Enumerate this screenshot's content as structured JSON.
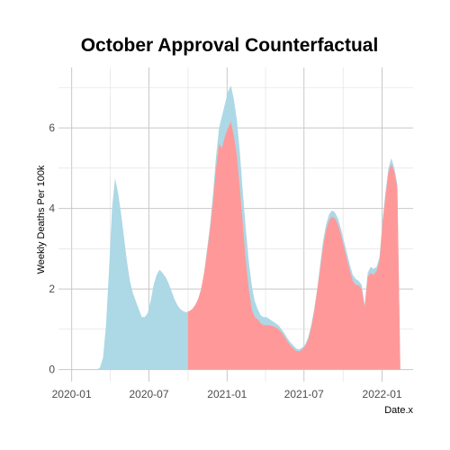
{
  "chart_data": {
    "type": "area",
    "title": "October Approval Counterfactual",
    "xlabel": "Date.x",
    "ylabel": "Weekly Deaths Per 100k",
    "xlim": [
      "2019-12-01",
      "2022-03-15"
    ],
    "ylim": [
      -0.3,
      7.5
    ],
    "x_ticks": [
      "2020-01-01",
      "2020-07-01",
      "2021-01-01",
      "2021-07-01",
      "2022-01-01"
    ],
    "x_tick_labels": [
      "2020-01",
      "2020-07",
      "2021-01",
      "2021-07",
      "2022-01"
    ],
    "y_ticks": [
      0,
      2,
      4,
      6
    ],
    "y_tick_labels": [
      "0",
      "2",
      "4",
      "6"
    ],
    "grid": true,
    "legend": "none",
    "series": [
      {
        "color": "#add8e6",
        "points": [
          [
            "2020-03-01",
            0.0
          ],
          [
            "2020-03-08",
            0.05
          ],
          [
            "2020-03-15",
            0.3
          ],
          [
            "2020-03-22",
            1.1
          ],
          [
            "2020-03-29",
            2.5
          ],
          [
            "2020-04-05",
            4.0
          ],
          [
            "2020-04-12",
            4.75
          ],
          [
            "2020-04-19",
            4.4
          ],
          [
            "2020-04-26",
            3.9
          ],
          [
            "2020-05-03",
            3.3
          ],
          [
            "2020-05-10",
            2.7
          ],
          [
            "2020-05-17",
            2.2
          ],
          [
            "2020-05-24",
            1.9
          ],
          [
            "2020-05-31",
            1.7
          ],
          [
            "2020-06-07",
            1.5
          ],
          [
            "2020-06-14",
            1.3
          ],
          [
            "2020-06-21",
            1.3
          ],
          [
            "2020-06-28",
            1.4
          ],
          [
            "2020-07-05",
            1.7
          ],
          [
            "2020-07-12",
            2.1
          ],
          [
            "2020-07-19",
            2.35
          ],
          [
            "2020-07-26",
            2.48
          ],
          [
            "2020-08-02",
            2.4
          ],
          [
            "2020-08-09",
            2.3
          ],
          [
            "2020-08-16",
            2.15
          ],
          [
            "2020-08-23",
            1.95
          ],
          [
            "2020-08-30",
            1.75
          ],
          [
            "2020-09-06",
            1.6
          ],
          [
            "2020-09-13",
            1.5
          ],
          [
            "2020-09-20",
            1.45
          ],
          [
            "2020-09-27",
            1.42
          ],
          [
            "2020-10-04",
            1.45
          ],
          [
            "2020-10-11",
            1.5
          ],
          [
            "2020-10-18",
            1.6
          ],
          [
            "2020-10-25",
            1.75
          ],
          [
            "2020-11-01",
            2.0
          ],
          [
            "2020-11-08",
            2.4
          ],
          [
            "2020-11-15",
            3.0
          ],
          [
            "2020-11-22",
            3.6
          ],
          [
            "2020-11-29",
            4.4
          ],
          [
            "2020-12-06",
            5.3
          ],
          [
            "2020-12-13",
            6.0
          ],
          [
            "2020-12-20",
            6.3
          ],
          [
            "2020-12-27",
            6.6
          ],
          [
            "2021-01-03",
            6.9
          ],
          [
            "2021-01-10",
            7.05
          ],
          [
            "2021-01-17",
            6.7
          ],
          [
            "2021-01-24",
            6.2
          ],
          [
            "2021-01-31",
            5.4
          ],
          [
            "2021-02-07",
            4.4
          ],
          [
            "2021-02-14",
            3.5
          ],
          [
            "2021-02-21",
            2.7
          ],
          [
            "2021-02-28",
            2.1
          ],
          [
            "2021-03-07",
            1.7
          ],
          [
            "2021-03-14",
            1.5
          ],
          [
            "2021-03-21",
            1.35
          ],
          [
            "2021-03-28",
            1.3
          ],
          [
            "2021-04-04",
            1.3
          ],
          [
            "2021-04-11",
            1.25
          ],
          [
            "2021-04-18",
            1.2
          ],
          [
            "2021-04-25",
            1.15
          ],
          [
            "2021-05-02",
            1.1
          ],
          [
            "2021-05-09",
            1.0
          ],
          [
            "2021-05-16",
            0.9
          ],
          [
            "2021-05-23",
            0.78
          ],
          [
            "2021-05-30",
            0.68
          ],
          [
            "2021-06-06",
            0.6
          ],
          [
            "2021-06-13",
            0.52
          ],
          [
            "2021-06-20",
            0.5
          ],
          [
            "2021-06-27",
            0.55
          ],
          [
            "2021-07-04",
            0.62
          ],
          [
            "2021-07-11",
            0.8
          ],
          [
            "2021-07-18",
            1.1
          ],
          [
            "2021-07-25",
            1.5
          ],
          [
            "2021-08-01",
            2.0
          ],
          [
            "2021-08-08",
            2.6
          ],
          [
            "2021-08-15",
            3.2
          ],
          [
            "2021-08-22",
            3.6
          ],
          [
            "2021-08-29",
            3.85
          ],
          [
            "2021-09-05",
            3.95
          ],
          [
            "2021-09-12",
            3.9
          ],
          [
            "2021-09-19",
            3.75
          ],
          [
            "2021-09-26",
            3.5
          ],
          [
            "2021-10-03",
            3.2
          ],
          [
            "2021-10-10",
            2.9
          ],
          [
            "2021-10-17",
            2.6
          ],
          [
            "2021-10-24",
            2.35
          ],
          [
            "2021-10-31",
            2.25
          ],
          [
            "2021-11-07",
            2.2
          ],
          [
            "2021-11-14",
            2.1
          ],
          [
            "2021-11-21",
            1.6
          ],
          [
            "2021-11-28",
            2.4
          ],
          [
            "2021-12-05",
            2.55
          ],
          [
            "2021-12-12",
            2.5
          ],
          [
            "2021-12-19",
            2.55
          ],
          [
            "2021-12-26",
            2.8
          ],
          [
            "2022-01-02",
            3.7
          ],
          [
            "2022-01-09",
            4.4
          ],
          [
            "2022-01-16",
            5.0
          ],
          [
            "2022-01-23",
            5.25
          ],
          [
            "2022-01-30",
            5.0
          ],
          [
            "2022-02-06",
            4.6
          ],
          [
            "2022-02-13",
            0.0
          ]
        ]
      },
      {
        "color": "#ff9999",
        "points": [
          [
            "2020-10-01",
            0.0
          ],
          [
            "2020-10-01",
            1.45
          ],
          [
            "2020-10-04",
            1.45
          ],
          [
            "2020-10-11",
            1.5
          ],
          [
            "2020-10-18",
            1.6
          ],
          [
            "2020-10-25",
            1.75
          ],
          [
            "2020-11-01",
            2.0
          ],
          [
            "2020-11-08",
            2.4
          ],
          [
            "2020-11-15",
            2.9
          ],
          [
            "2020-11-22",
            3.5
          ],
          [
            "2020-11-29",
            4.2
          ],
          [
            "2020-12-06",
            5.0
          ],
          [
            "2020-12-13",
            5.6
          ],
          [
            "2020-12-20",
            5.5
          ],
          [
            "2020-12-27",
            5.8
          ],
          [
            "2021-01-03",
            6.0
          ],
          [
            "2021-01-10",
            6.15
          ],
          [
            "2021-01-17",
            5.8
          ],
          [
            "2021-01-24",
            5.3
          ],
          [
            "2021-01-31",
            4.5
          ],
          [
            "2021-02-07",
            3.6
          ],
          [
            "2021-02-14",
            2.7
          ],
          [
            "2021-02-21",
            2.0
          ],
          [
            "2021-02-28",
            1.5
          ],
          [
            "2021-03-07",
            1.3
          ],
          [
            "2021-03-14",
            1.25
          ],
          [
            "2021-03-21",
            1.15
          ],
          [
            "2021-03-28",
            1.1
          ],
          [
            "2021-04-04",
            1.1
          ],
          [
            "2021-04-11",
            1.1
          ],
          [
            "2021-04-18",
            1.08
          ],
          [
            "2021-04-25",
            1.05
          ],
          [
            "2021-05-02",
            1.0
          ],
          [
            "2021-05-09",
            0.92
          ],
          [
            "2021-05-16",
            0.82
          ],
          [
            "2021-05-23",
            0.7
          ],
          [
            "2021-05-30",
            0.6
          ],
          [
            "2021-06-06",
            0.52
          ],
          [
            "2021-06-13",
            0.46
          ],
          [
            "2021-06-20",
            0.45
          ],
          [
            "2021-06-27",
            0.5
          ],
          [
            "2021-07-04",
            0.58
          ],
          [
            "2021-07-11",
            0.75
          ],
          [
            "2021-07-18",
            1.05
          ],
          [
            "2021-07-25",
            1.45
          ],
          [
            "2021-08-01",
            1.95
          ],
          [
            "2021-08-08",
            2.5
          ],
          [
            "2021-08-15",
            3.05
          ],
          [
            "2021-08-22",
            3.45
          ],
          [
            "2021-08-29",
            3.7
          ],
          [
            "2021-09-05",
            3.8
          ],
          [
            "2021-09-12",
            3.75
          ],
          [
            "2021-09-19",
            3.6
          ],
          [
            "2021-09-26",
            3.35
          ],
          [
            "2021-10-03",
            3.05
          ],
          [
            "2021-10-10",
            2.75
          ],
          [
            "2021-10-17",
            2.45
          ],
          [
            "2021-10-24",
            2.2
          ],
          [
            "2021-10-31",
            2.1
          ],
          [
            "2021-11-07",
            2.1
          ],
          [
            "2021-11-14",
            2.0
          ],
          [
            "2021-11-21",
            1.55
          ],
          [
            "2021-11-28",
            2.3
          ],
          [
            "2021-12-05",
            2.4
          ],
          [
            "2021-12-12",
            2.35
          ],
          [
            "2021-12-19",
            2.45
          ],
          [
            "2021-12-26",
            2.7
          ],
          [
            "2022-01-02",
            3.6
          ],
          [
            "2022-01-09",
            4.3
          ],
          [
            "2022-01-16",
            4.9
          ],
          [
            "2022-01-23",
            5.1
          ],
          [
            "2022-01-30",
            4.9
          ],
          [
            "2022-02-06",
            4.5
          ],
          [
            "2022-02-13",
            0.0
          ]
        ]
      }
    ]
  }
}
